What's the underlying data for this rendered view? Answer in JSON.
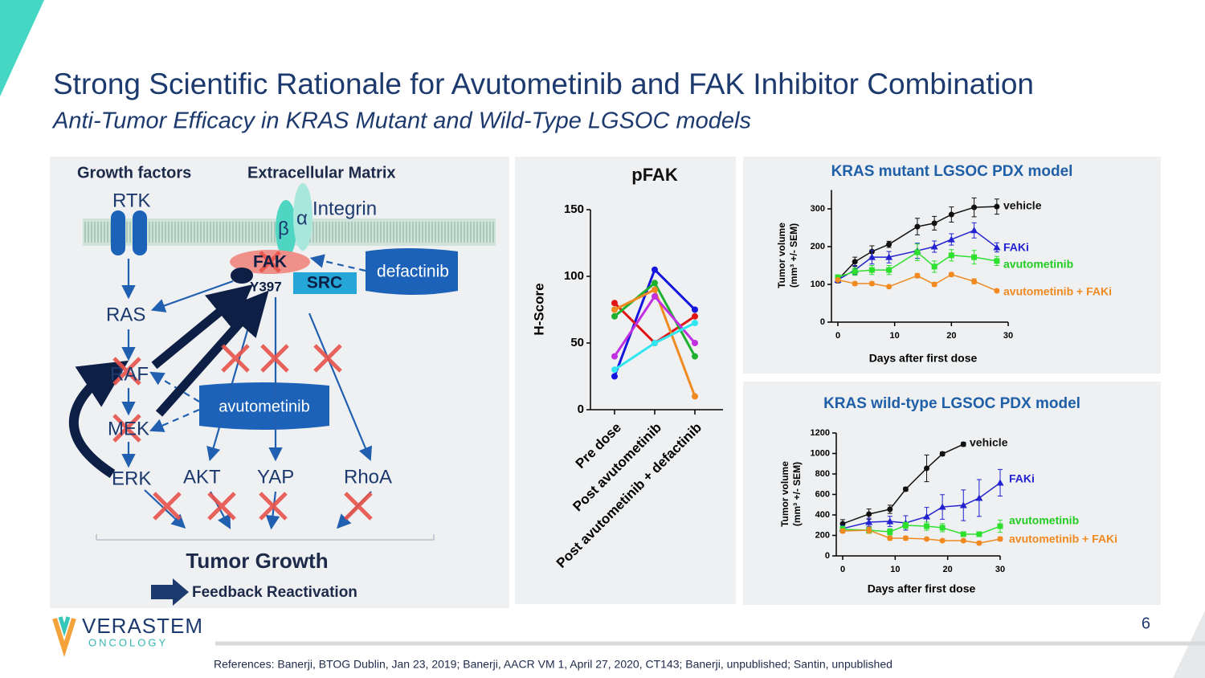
{
  "slide": {
    "title": "Strong Scientific Rationale for Avutometinib and FAK Inhibitor Combination",
    "subtitle": "Anti-Tumor Efficacy in KRAS Mutant and Wild-Type LGSOC models",
    "logo": "VERASTEM",
    "logo_sub": "ONCOLOGY",
    "page": "6",
    "references": "References: Banerji, BTOG Dublin, Jan 23, 2019; Banerji, AACR VM 1, April 27, 2020, CT143; Banerji, unpublished; Santin, unpublished"
  },
  "diagram": {
    "growth_factors": "Growth factors",
    "ecm": "Extracellular Matrix",
    "rtk": "RTK",
    "integrin": "Integrin",
    "beta": "β",
    "alpha": "α",
    "fak": "FAK",
    "y397": "Y397",
    "src": "SRC",
    "defactinib": "defactinib",
    "ras": "RAS",
    "raf": "RAF",
    "mek": "MEK",
    "erk": "ERK",
    "akt": "AKT",
    "yap": "YAP",
    "rhoa": "RhoA",
    "avutometinib": "avutometinib",
    "tumor_growth": "Tumor Growth",
    "feedback": "Feedback Reactivation"
  },
  "chart_data": [
    {
      "type": "line",
      "title": "pFAK",
      "ylabel": "H-Score",
      "categories": [
        "Pre dose",
        "Post avutometinib",
        "Post avutometinib + defactinib"
      ],
      "ylim": [
        0,
        150
      ],
      "yticks": [
        0,
        50,
        100,
        150
      ],
      "series": [
        {
          "color": "#1515e0",
          "values": [
            25,
            105,
            75
          ]
        },
        {
          "color": "#e01515",
          "values": [
            80,
            50,
            70
          ]
        },
        {
          "color": "#20b030",
          "values": [
            70,
            95,
            40
          ]
        },
        {
          "color": "#f08a20",
          "values": [
            75,
            90,
            10
          ]
        },
        {
          "color": "#c030e0",
          "values": [
            40,
            85,
            50
          ]
        },
        {
          "color": "#30e6f0",
          "values": [
            30,
            50,
            65
          ]
        }
      ]
    },
    {
      "type": "line",
      "title": "KRAS mutant LGSOC PDX model",
      "xlabel": "Days after first dose",
      "ylabel": "Tumor volume",
      "ylabel2": "(mm³ +/- SEM)",
      "x": [
        0,
        3,
        6,
        9,
        14,
        17,
        20,
        24,
        28
      ],
      "xlim": [
        0,
        30
      ],
      "xticks": [
        0,
        10,
        20,
        30
      ],
      "ylim": [
        0,
        350
      ],
      "yticks": [
        0,
        100,
        200,
        300
      ],
      "series": [
        {
          "name": "vehicle",
          "color": "#111111",
          "marker": "circle",
          "values": [
            112,
            160,
            187,
            206,
            253,
            262,
            285,
            304,
            306
          ],
          "errors": [
            8,
            12,
            15,
            8,
            22,
            18,
            20,
            25,
            20
          ]
        },
        {
          "name": "FAKi",
          "color": "#2222d0",
          "marker": "triangle",
          "values": [
            112,
            138,
            172,
            172,
            189,
            200,
            219,
            243,
            198
          ],
          "errors": [
            6,
            12,
            18,
            15,
            20,
            15,
            15,
            20,
            12
          ]
        },
        {
          "name": "avutometinib",
          "color": "#2ee02e",
          "marker": "square",
          "values": [
            119,
            134,
            138,
            138,
            185,
            147,
            177,
            172,
            162
          ],
          "errors": [
            6,
            10,
            12,
            12,
            22,
            15,
            15,
            18,
            12
          ]
        },
        {
          "name": "avutometinib + FAKi",
          "color": "#f08a20",
          "marker": "circle",
          "values": [
            112,
            102,
            102,
            94,
            123,
            100,
            126,
            108,
            83
          ],
          "errors": [
            4,
            5,
            5,
            4,
            6,
            5,
            5,
            7,
            4
          ]
        }
      ]
    },
    {
      "type": "line",
      "title": "KRAS wild-type LGSOC PDX model",
      "xlabel": "Days after first dose",
      "ylabel": "Tumor volume",
      "ylabel2": "(mm³ +/- SEM)",
      "x": [
        0,
        5,
        9,
        12,
        16,
        19,
        23,
        26,
        30
      ],
      "xlim": [
        0,
        30
      ],
      "xticks": [
        0,
        10,
        20,
        30
      ],
      "ylim": [
        0,
        1200
      ],
      "yticks": [
        0,
        200,
        400,
        600,
        800,
        1000,
        1200
      ],
      "series": [
        {
          "name": "vehicle",
          "color": "#111111",
          "marker": "circle",
          "values": [
            314,
            408,
            455,
            651,
            855,
            996,
            1090,
            null,
            null
          ],
          "errors": [
            40,
            50,
            40,
            20,
            130,
            20,
            20,
            null,
            null
          ]
        },
        {
          "name": "FAKi",
          "color": "#2222d0",
          "marker": "triangle",
          "values": [
            267,
            329,
            337,
            322,
            384,
            478,
            494,
            565,
            714
          ],
          "errors": [
            30,
            40,
            50,
            70,
            90,
            120,
            150,
            180,
            130
          ]
        },
        {
          "name": "avutometinib",
          "color": "#2ee02e",
          "marker": "square",
          "values": [
            259,
            251,
            235,
            298,
            290,
            275,
            212,
            212,
            290
          ],
          "errors": [
            30,
            30,
            30,
            30,
            40,
            40,
            20,
            20,
            60
          ]
        },
        {
          "name": "avutometinib + FAKi",
          "color": "#f08a20",
          "marker": "circle",
          "values": [
            243,
            251,
            173,
            173,
            165,
            149,
            149,
            125,
            165
          ],
          "errors": [
            20,
            30,
            20,
            20,
            15,
            15,
            15,
            15,
            20
          ]
        }
      ]
    }
  ]
}
